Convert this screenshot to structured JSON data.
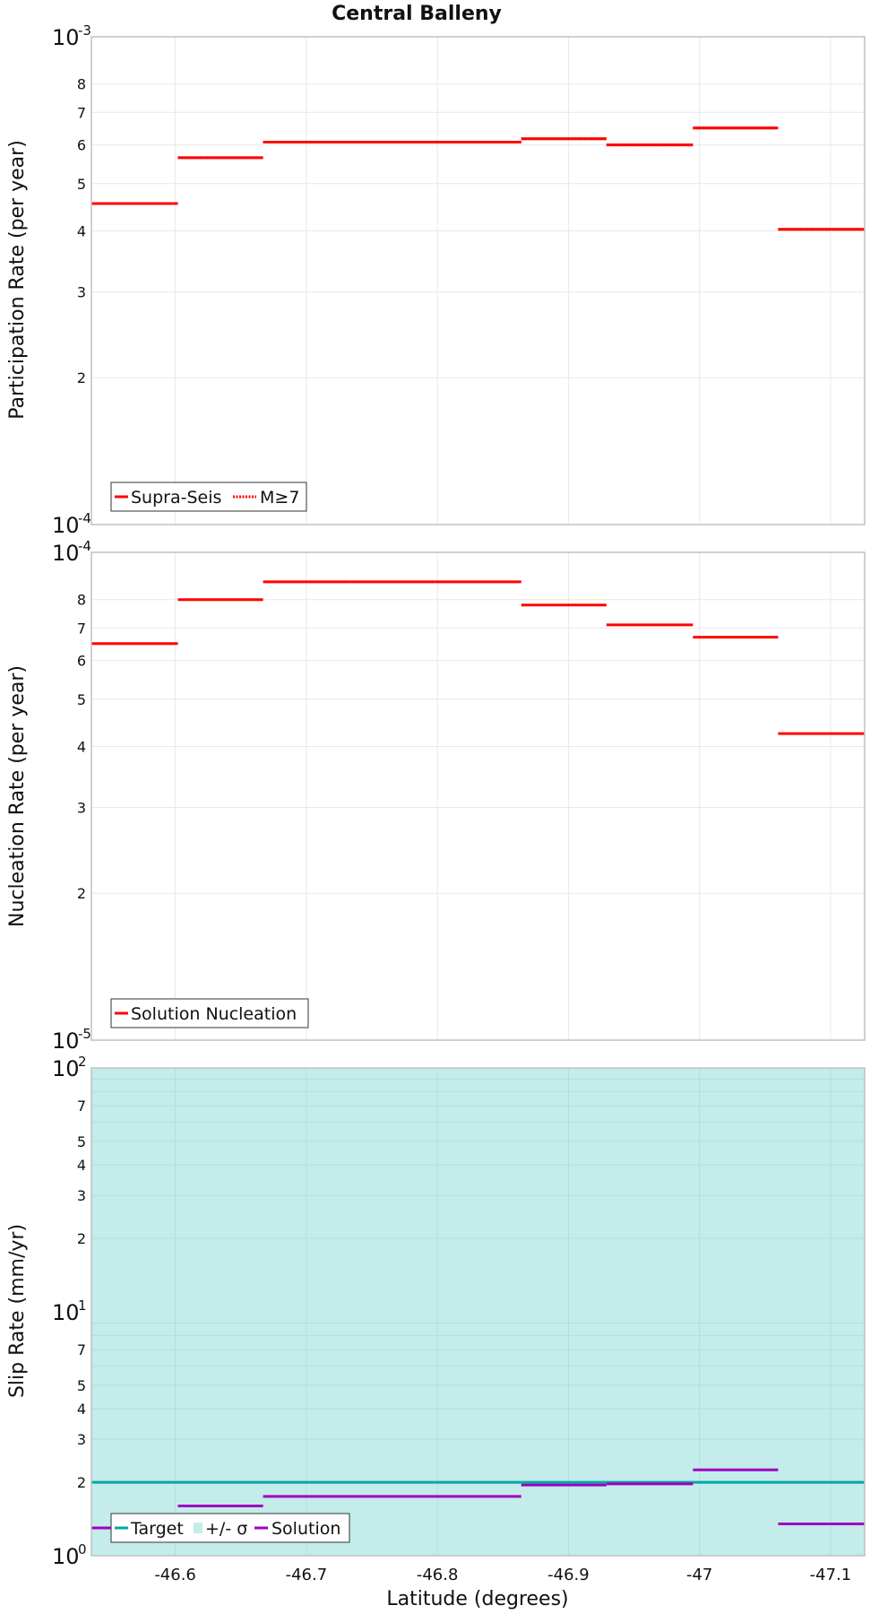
{
  "figure": {
    "title": "Central Balleny",
    "xlabel": "Latitude (degrees)",
    "x_ticks": [
      "-46.6",
      "-46.7",
      "-46.8",
      "-46.9",
      "-47",
      "-47.1"
    ]
  },
  "colors": {
    "red": "#ff0000",
    "teal": "#00a8a8",
    "band": "#c3ecea",
    "purple": "#a000c0",
    "grid": "#e8e8e8",
    "frame": "#c0c0c0"
  },
  "chart_data": [
    {
      "type": "line",
      "name": "participation",
      "ylabel": "Participation Rate (per year)",
      "yscale": "log",
      "ylim": [
        0.0001,
        0.001
      ],
      "xlim": [
        -46.536,
        -47.126
      ],
      "x_tick_values": [
        -46.6,
        -46.7,
        -46.8,
        -46.9,
        -47.0,
        -47.1
      ],
      "y_major_ticks": [
        {
          "base": "10",
          "exp": "-4"
        },
        {
          "base": "10",
          "exp": "-3"
        }
      ],
      "y_minor_ticks": [
        "2",
        "3",
        "4",
        "5",
        "6",
        "7",
        "8"
      ],
      "y_minor_values": [
        0.0002,
        0.0003,
        0.0004,
        0.0005,
        0.0006,
        0.0007,
        0.0008
      ],
      "segments_x": [
        -46.536,
        -46.602,
        -46.667,
        -46.733,
        -46.798,
        -46.864,
        -46.929,
        -46.995,
        -47.06,
        -47.126
      ],
      "series": [
        {
          "name": "Supra-Seis",
          "style": "solid",
          "color": "#ff0000",
          "values": [
            0.000455,
            0.000565,
            0.000608,
            0.000608,
            0.000608,
            0.000618,
            0.0006,
            0.00065,
            0.000403
          ]
        },
        {
          "name": "M≥7",
          "style": "dotted",
          "color": "#ff0000",
          "values": [
            0.000455,
            0.000565,
            0.000608,
            0.000608,
            0.000608,
            0.000618,
            0.0006,
            0.00065,
            0.000403
          ]
        }
      ],
      "legend": {
        "position": "bottom-left",
        "entries": [
          "Supra-Seis",
          "M≥7"
        ]
      }
    },
    {
      "type": "line",
      "name": "nucleation",
      "ylabel": "Nucleation Rate (per year)",
      "yscale": "log",
      "ylim": [
        1e-05,
        0.0001
      ],
      "xlim": [
        -46.536,
        -47.126
      ],
      "y_major_ticks": [
        {
          "base": "10",
          "exp": "-5"
        },
        {
          "base": "10",
          "exp": "-4"
        }
      ],
      "y_minor_ticks": [
        "2",
        "3",
        "4",
        "5",
        "6",
        "7",
        "8"
      ],
      "y_minor_values": [
        2e-05,
        3e-05,
        4e-05,
        5e-05,
        6e-05,
        7e-05,
        8e-05
      ],
      "segments_x": [
        -46.536,
        -46.602,
        -46.667,
        -46.733,
        -46.798,
        -46.864,
        -46.929,
        -46.995,
        -47.06,
        -47.126
      ],
      "series": [
        {
          "name": "Solution Nucleation",
          "style": "solid",
          "color": "#ff0000",
          "values": [
            6.5e-05,
            8e-05,
            8.7e-05,
            8.7e-05,
            8.7e-05,
            7.8e-05,
            7.1e-05,
            6.7e-05,
            4.25e-05
          ]
        }
      ],
      "legend": {
        "position": "bottom-left",
        "entries": [
          "Solution Nucleation"
        ]
      }
    },
    {
      "type": "line",
      "name": "slip",
      "ylabel": "Slip Rate (mm/yr)",
      "yscale": "log",
      "ylim": [
        1,
        100
      ],
      "xlim": [
        -46.536,
        -47.126
      ],
      "y_major_ticks": [
        {
          "base": "10",
          "exp": "0"
        },
        {
          "base": "10",
          "exp": "1"
        },
        {
          "base": "10",
          "exp": "2"
        }
      ],
      "y_minor_ticks": [
        "2",
        "3",
        "4",
        "5",
        "7",
        "2",
        "3",
        "4",
        "5",
        "7"
      ],
      "y_minor_values": [
        2,
        3,
        4,
        5,
        7,
        20,
        30,
        40,
        50,
        70
      ],
      "y_grid_values": [
        2,
        3,
        4,
        5,
        6,
        7,
        8,
        9,
        20,
        30,
        40,
        50,
        60,
        70,
        80,
        90
      ],
      "segments_x": [
        -46.536,
        -46.602,
        -46.667,
        -46.733,
        -46.798,
        -46.864,
        -46.929,
        -46.995,
        -47.06,
        -47.126
      ],
      "band": {
        "name": "+/- σ",
        "low": 1,
        "high": 100
      },
      "series": [
        {
          "name": "Target",
          "style": "solid",
          "color": "#00a8a8",
          "values": [
            2.0,
            2.0,
            2.0,
            2.0,
            2.0,
            2.0,
            2.0,
            2.0,
            2.0
          ]
        },
        {
          "name": "Solution",
          "style": "solid",
          "color": "#a000c0",
          "values": [
            1.3,
            1.6,
            1.75,
            1.75,
            1.75,
            1.95,
            1.97,
            2.25,
            1.35
          ]
        }
      ],
      "legend": {
        "position": "bottom-left",
        "entries": [
          "Target",
          "+/- σ",
          "Solution"
        ]
      }
    }
  ]
}
